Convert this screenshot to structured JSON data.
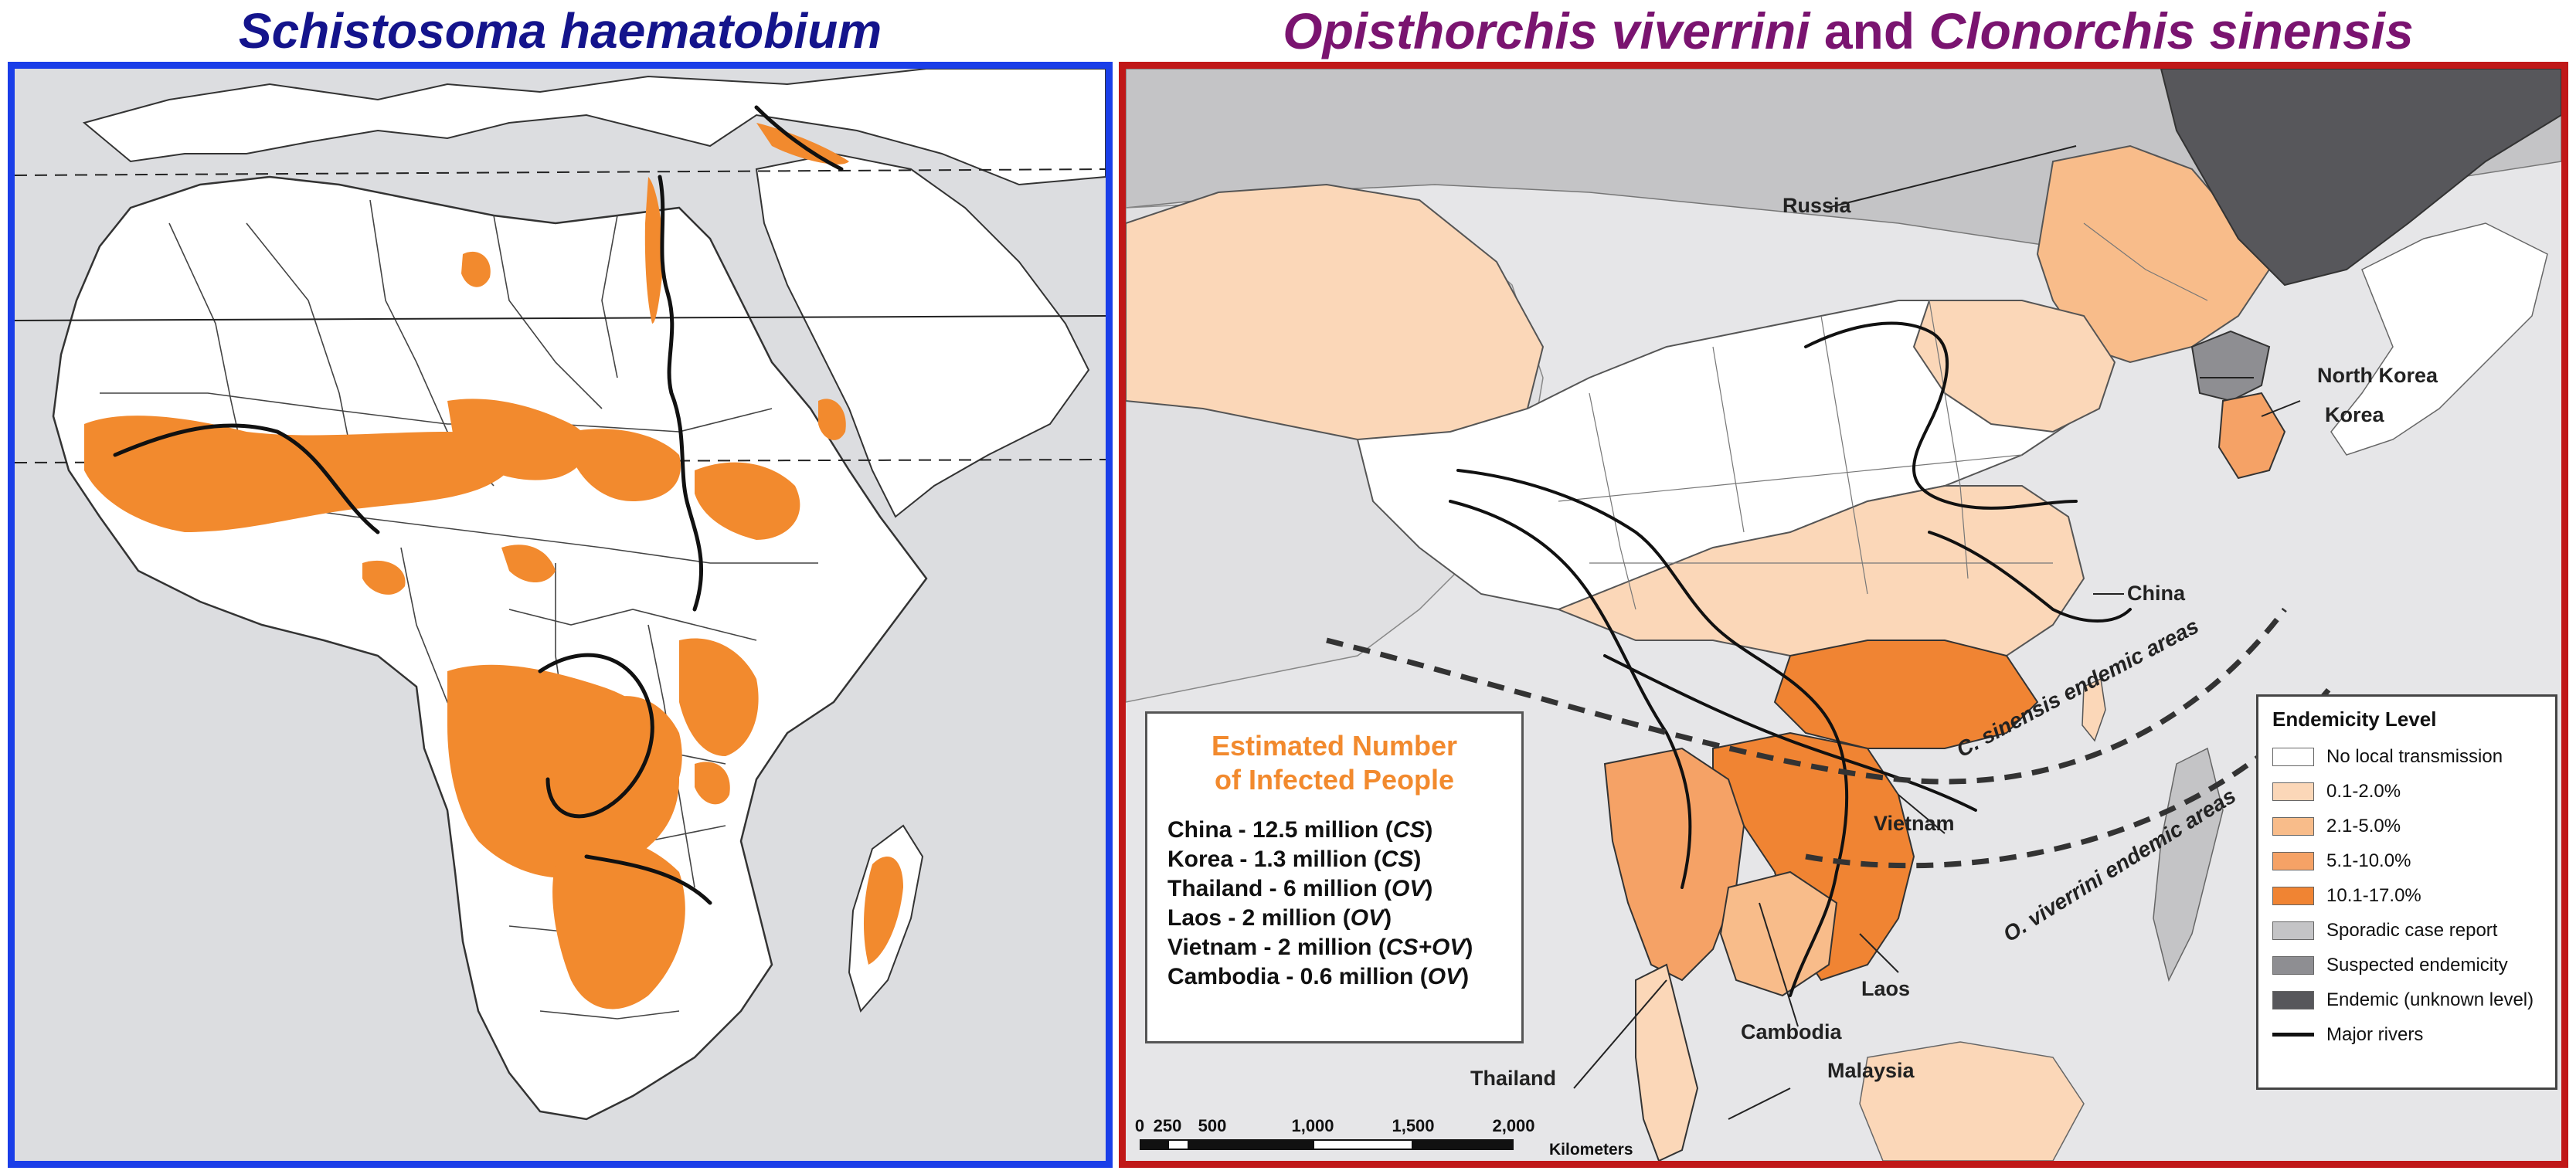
{
  "left_panel": {
    "title": "Schistosoma haematobium"
  },
  "right_panel": {
    "title_part1": "Opisthorchis viverrini",
    "title_and": "and",
    "title_part2": "Clonorchis sinensis",
    "country_labels": [
      "Russia",
      "North Korea",
      "Korea",
      "China",
      "Vietnam",
      "Laos",
      "Cambodia",
      "Thailand",
      "Malaysia"
    ],
    "endemic_area_labels": [
      "C. sinensis endemic areas",
      "O. viverrini endemic areas"
    ],
    "infected_box": {
      "title_line1": "Estimated Number",
      "title_line2": "of Infected People",
      "rows": [
        {
          "text": "China - 12.5 million (",
          "em": "CS",
          "end": ")"
        },
        {
          "text": "Korea - 1.3 million (",
          "em": "CS",
          "end": ")"
        },
        {
          "text": "Thailand - 6 million (",
          "em": "OV",
          "end": ")"
        },
        {
          "text": "Laos - 2 million (",
          "em": "OV",
          "end": ")"
        },
        {
          "text": "Vietnam - 2 million (",
          "em": "CS+OV",
          "end": ")"
        },
        {
          "text": "Cambodia - 0.6 million (",
          "em": "OV",
          "end": ")"
        }
      ]
    },
    "legend": {
      "title": "Endemicity Level",
      "items": [
        {
          "label": "No local transmission",
          "color": "#ffffff"
        },
        {
          "label": "0.1-2.0%",
          "color": "#fbd7b8"
        },
        {
          "label": "2.1-5.0%",
          "color": "#f8bc8a"
        },
        {
          "label": "5.1-10.0%",
          "color": "#f5a266"
        },
        {
          "label": "10.1-17.0%",
          "color": "#f08433"
        },
        {
          "label": "Sporadic case report",
          "color": "#c4c4c6"
        },
        {
          "label": "Suspected endemicity",
          "color": "#8e8e92"
        },
        {
          "label": "Endemic (unknown level)",
          "color": "#57575b"
        },
        {
          "label": "Major rivers",
          "color": "#111111"
        }
      ]
    },
    "scale_bar": {
      "ticks": [
        "0",
        "250",
        "500",
        "1,000",
        "1,500",
        "2,000"
      ],
      "unit": "Kilometers"
    }
  },
  "colors": {
    "left_border": "#1a3ee8",
    "right_border": "#c01818",
    "left_title": "#14148c",
    "right_title": "#7a1470",
    "endemic_orange": "#f28a2e"
  }
}
